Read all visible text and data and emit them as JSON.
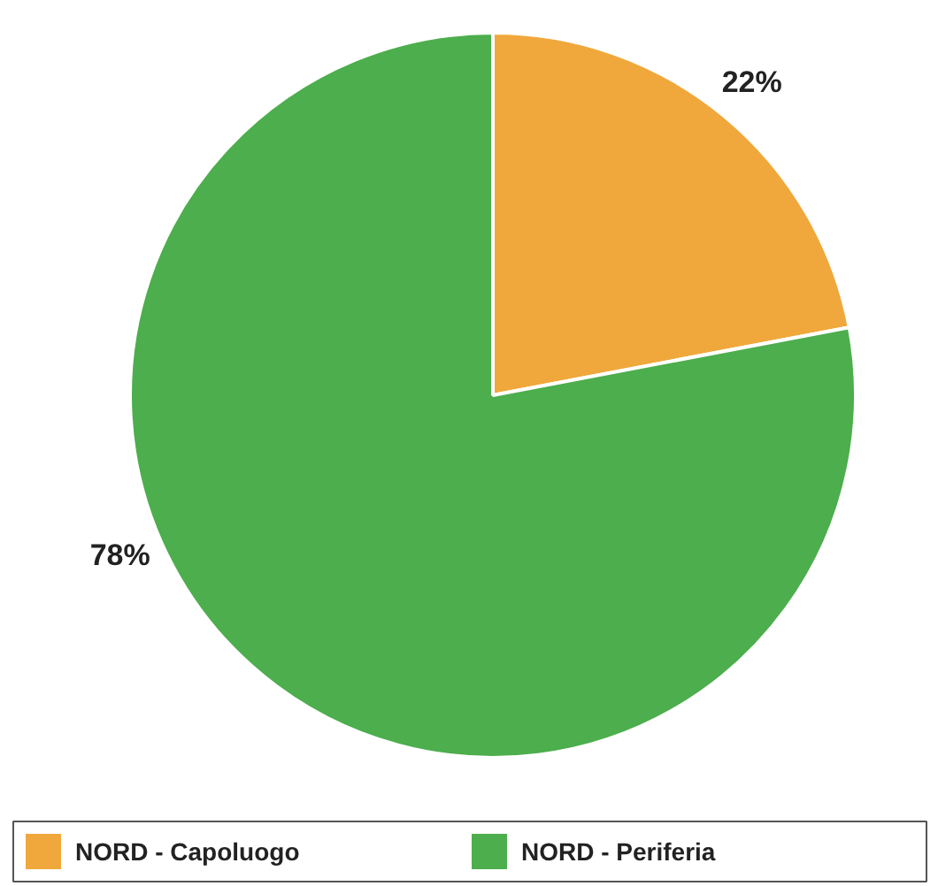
{
  "chart_data": {
    "type": "pie",
    "categories": [
      "NORD - Capoluogo",
      "NORD - Periferia"
    ],
    "values": [
      22,
      78
    ],
    "colors": [
      "#f0a83c",
      "#4cae4c"
    ],
    "value_labels": [
      "22%",
      "78%"
    ],
    "legend": "bottom"
  }
}
